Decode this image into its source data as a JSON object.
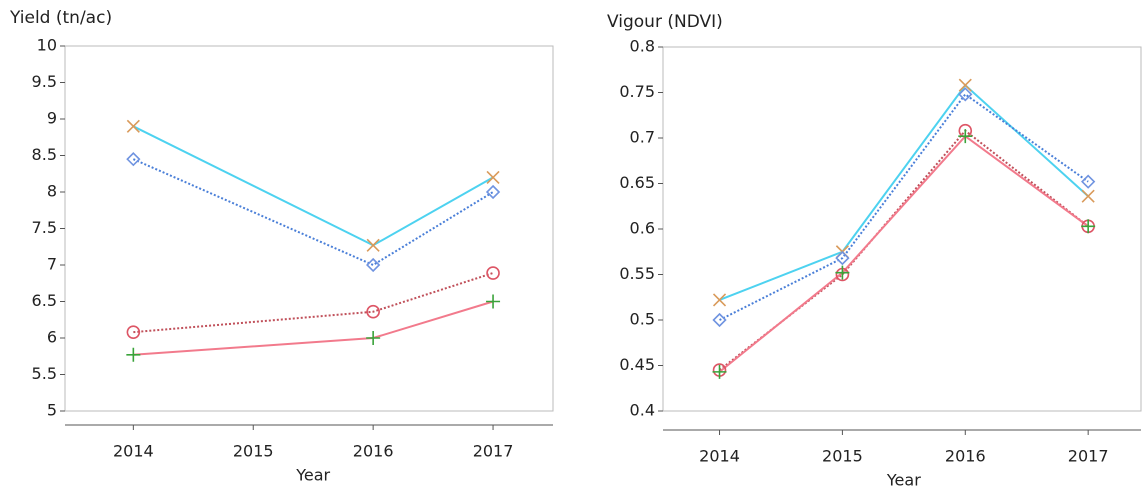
{
  "chart_data": [
    {
      "type": "line",
      "title": "Yield (tn/ac)",
      "x_label": "Year",
      "x": [
        2014,
        2016,
        2017
      ],
      "xlim": [
        2013.43,
        2017.5
      ],
      "xticks": [
        2014,
        2015,
        2016,
        2017
      ],
      "ylim": [
        5,
        10
      ],
      "yticks": [
        5,
        5.5,
        6,
        6.5,
        7,
        7.5,
        8,
        8.5,
        9,
        9.5,
        10
      ],
      "series": [
        {
          "color": "#4dd2f0",
          "line_style": "solid",
          "marker": "x",
          "marker_color": "#d99a5a",
          "values": [
            8.9,
            7.27,
            8.2
          ]
        },
        {
          "color": "#4a7fd8",
          "line_style": "dotted",
          "marker": "diamond",
          "marker_color": "#6f93e0",
          "values": [
            8.45,
            7.0,
            8.0
          ]
        },
        {
          "color": "#c0505a",
          "line_style": "dotted",
          "marker": "circle",
          "marker_color": "#dd5565",
          "values": [
            6.08,
            6.36,
            6.89
          ]
        },
        {
          "color": "#f27a8c",
          "line_style": "solid",
          "marker": "plus",
          "marker_color": "#3aa33a",
          "values": [
            5.77,
            6.0,
            6.5
          ]
        }
      ]
    },
    {
      "type": "line",
      "title": "Vigour (NDVI)",
      "x_label": "Year",
      "x": [
        2014,
        2015,
        2016,
        2017
      ],
      "xlim": [
        2013.54,
        2017.43
      ],
      "xticks": [
        2014,
        2015,
        2016,
        2017
      ],
      "ylim": [
        0.4,
        0.8
      ],
      "yticks": [
        0.4,
        0.45,
        0.5,
        0.55,
        0.6,
        0.65,
        0.7,
        0.75,
        0.8
      ],
      "series": [
        {
          "color": "#4dd2f0",
          "line_style": "solid",
          "marker": "x",
          "marker_color": "#d99a5a",
          "values": [
            0.522,
            0.575,
            0.758,
            0.636
          ]
        },
        {
          "color": "#4a7fd8",
          "line_style": "dotted",
          "marker": "diamond",
          "marker_color": "#6f93e0",
          "values": [
            0.5,
            0.568,
            0.748,
            0.652
          ]
        },
        {
          "color": "#c0505a",
          "line_style": "dotted",
          "marker": "circle",
          "marker_color": "#dd5565",
          "values": [
            0.445,
            0.55,
            0.708,
            0.603
          ]
        },
        {
          "color": "#f27a8c",
          "line_style": "solid",
          "marker": "plus",
          "marker_color": "#3aa33a",
          "values": [
            0.443,
            0.552,
            0.702,
            0.603
          ]
        }
      ]
    }
  ]
}
